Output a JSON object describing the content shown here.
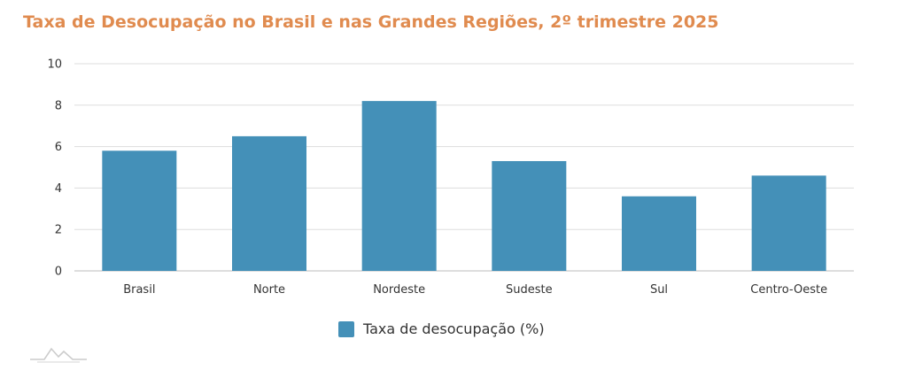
{
  "chart_data": {
    "type": "bar",
    "title": "Taxa de Desocupação no Brasil e nas Grandes Regiões, 2º trimestre 2025",
    "categories": [
      "Brasil",
      "Norte",
      "Nordeste",
      "Sudeste",
      "Sul",
      "Centro-Oeste"
    ],
    "series": [
      {
        "name": "Taxa de desocupação (%)",
        "values": [
          5.8,
          6.5,
          8.2,
          5.3,
          3.6,
          4.6
        ],
        "color": "#4490b8"
      }
    ],
    "ylim": [
      0,
      10
    ],
    "yticks": [
      0,
      2,
      4,
      6,
      8,
      10
    ],
    "grid": true,
    "legend": "bottom-center"
  },
  "colors": {
    "title": "#e08b4f",
    "bar": "#4490b8",
    "grid": "#dddddd"
  },
  "logo": {
    "icon": "mountain-logo-icon"
  }
}
